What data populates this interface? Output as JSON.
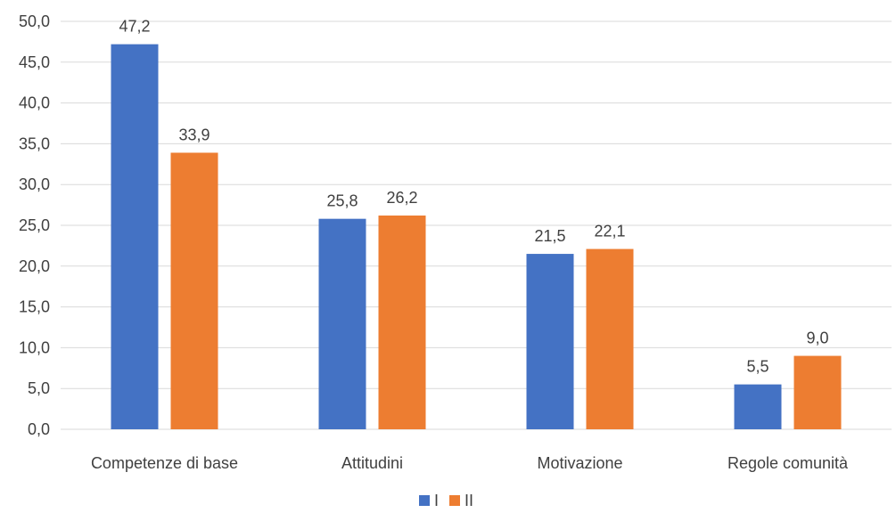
{
  "chart_data": {
    "type": "bar",
    "categories": [
      "Competenze di base",
      "Attitudini",
      "Motivazione",
      "Regole comunità"
    ],
    "series": [
      {
        "name": "I",
        "values": [
          47.2,
          25.8,
          21.5,
          5.5
        ],
        "color": "#4472C4"
      },
      {
        "name": "II",
        "values": [
          33.9,
          26.2,
          22.1,
          9.0
        ],
        "color": "#ED7D31"
      }
    ],
    "ylim": [
      0,
      50
    ],
    "yticks": [
      "0,0",
      "5,0",
      "10,0",
      "15,0",
      "20,0",
      "25,0",
      "30,0",
      "35,0",
      "40,0",
      "45,0",
      "50,0"
    ],
    "data_labels": [
      [
        "47,2",
        "25,8",
        "21,5",
        "5,5"
      ],
      [
        "33,9",
        "26,2",
        "22,1",
        "9,0"
      ]
    ],
    "grid": true,
    "legend": "bottom-center",
    "gridline_color": "#d9d9d9"
  }
}
